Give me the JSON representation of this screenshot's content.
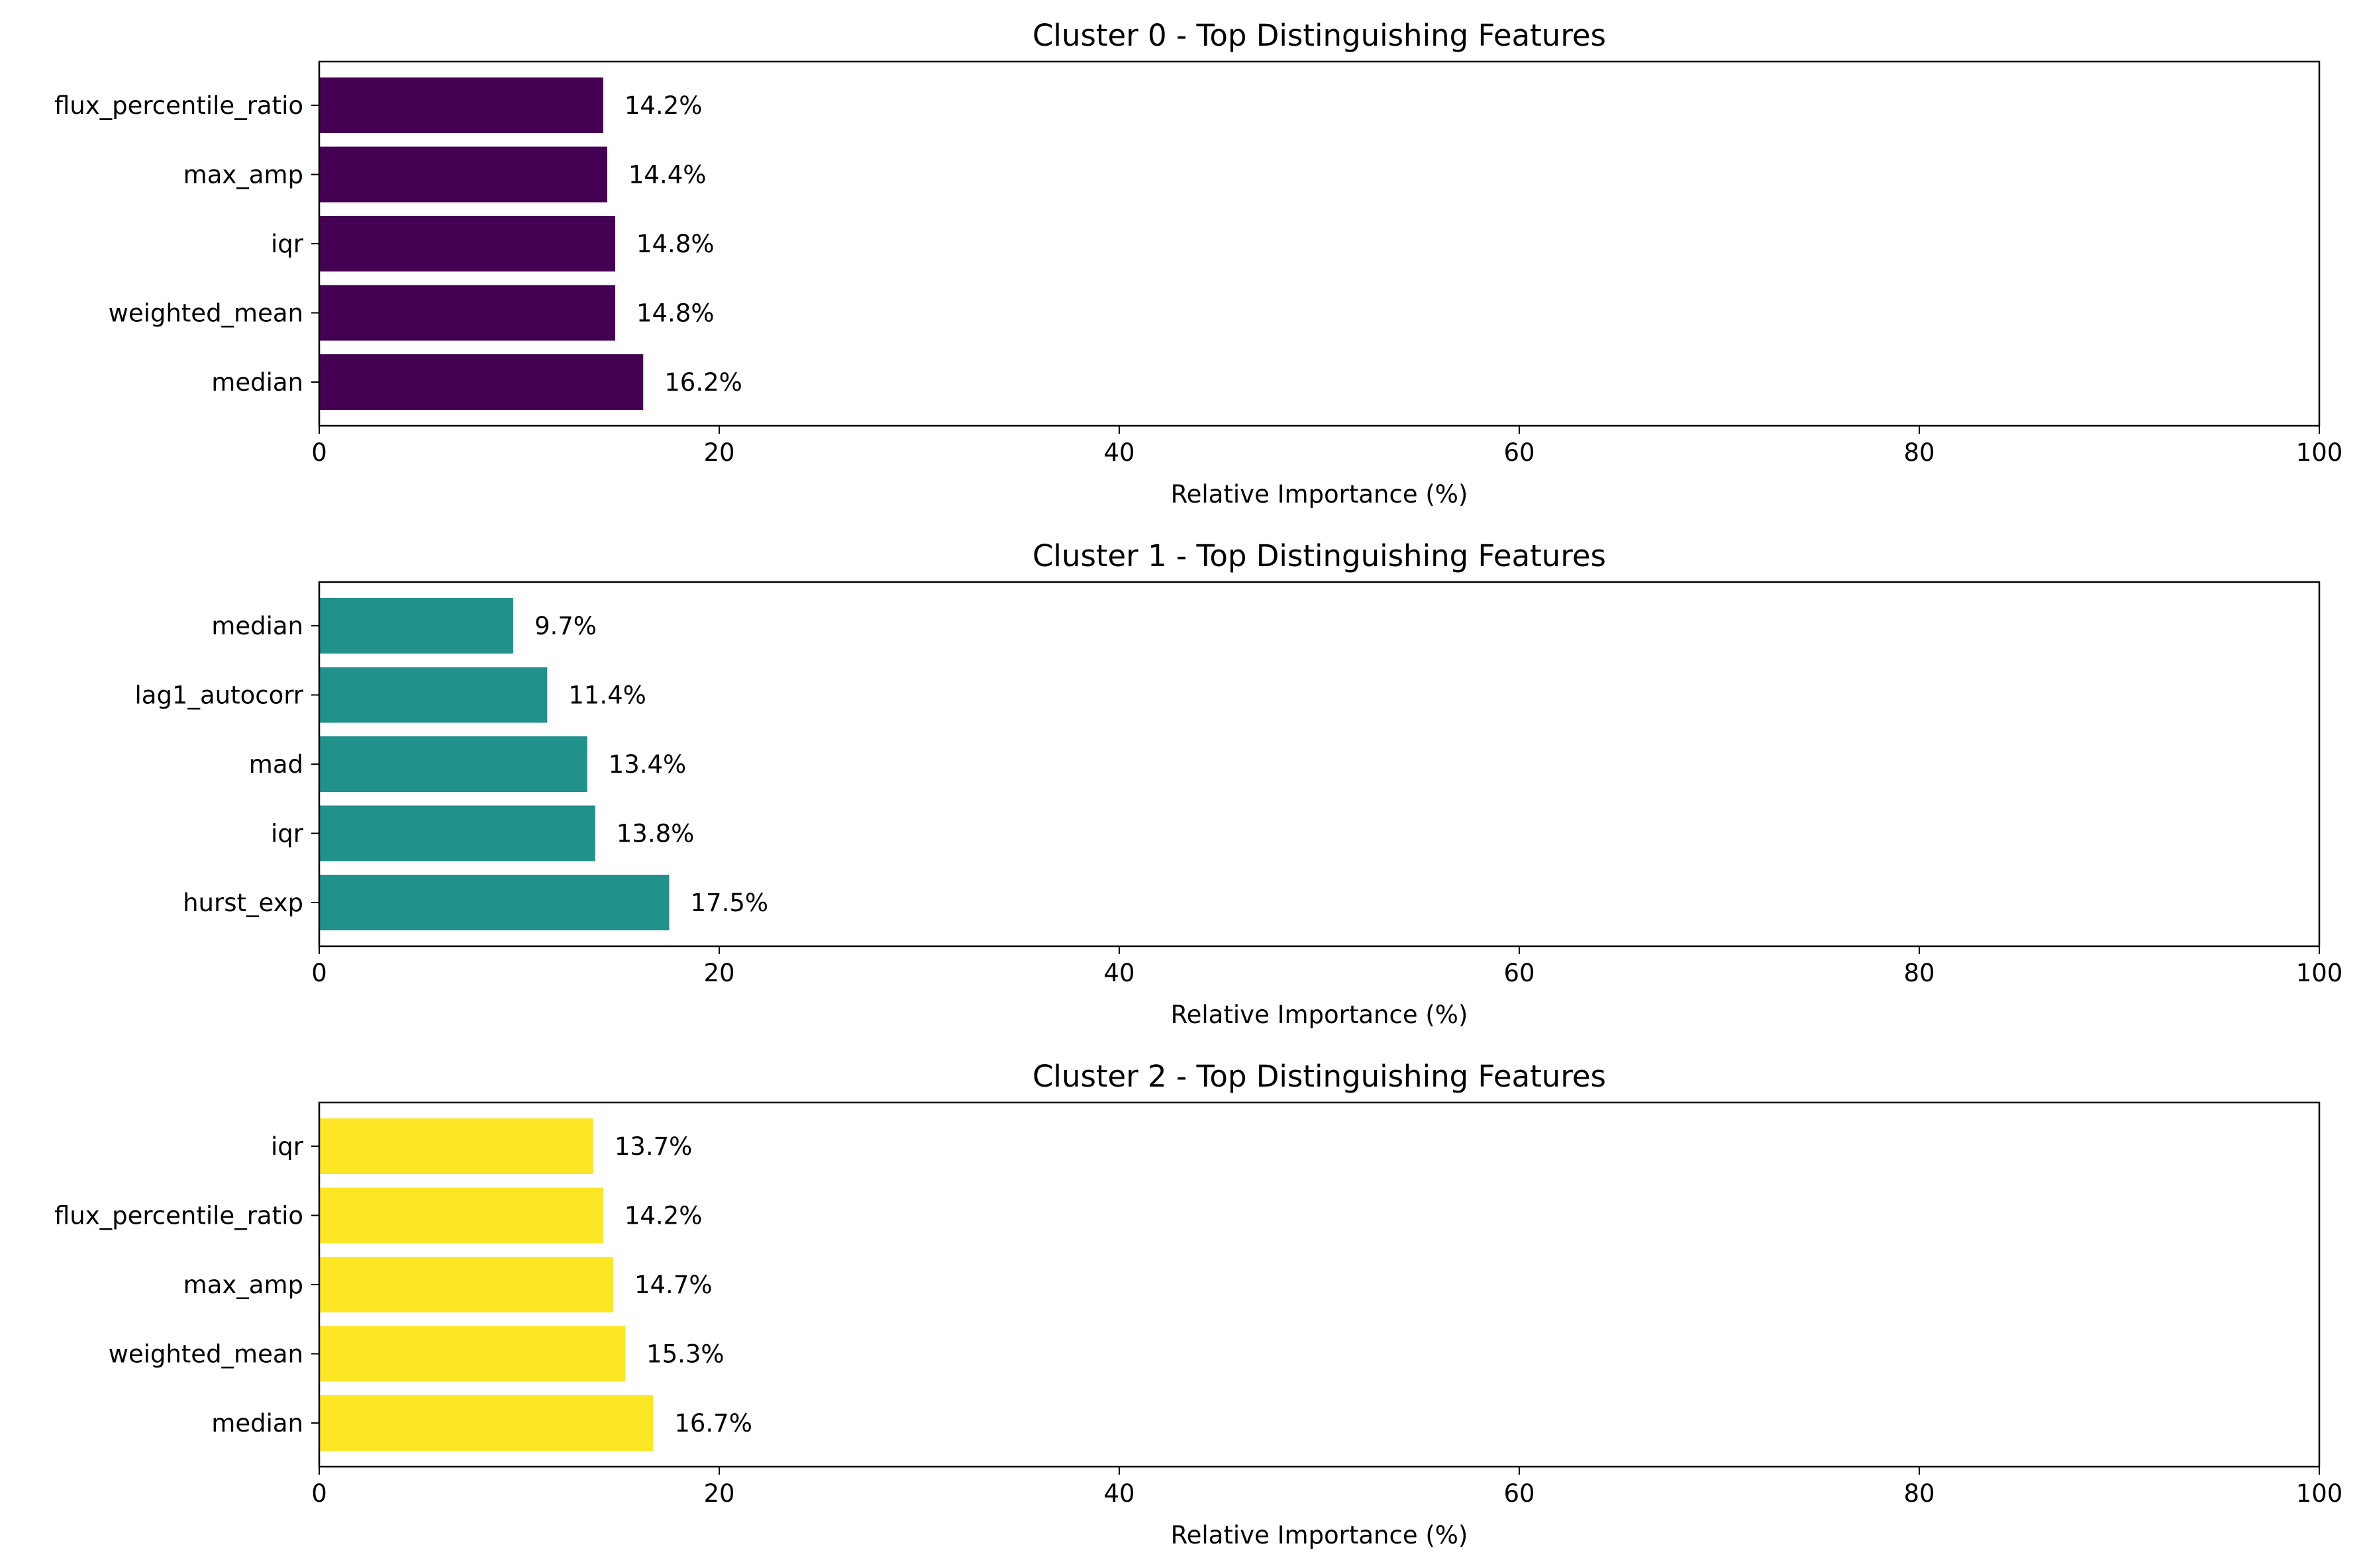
{
  "chart_data": [
    {
      "type": "bar",
      "orientation": "horizontal",
      "title": "Cluster 0 - Top Distinguishing Features",
      "xlabel": "Relative Importance (%)",
      "ylabel": "",
      "xlim": [
        0,
        100
      ],
      "xticks": [
        0,
        20,
        40,
        60,
        80,
        100
      ],
      "color": "#440154",
      "grid": false,
      "categories": [
        "median",
        "weighted_mean",
        "iqr",
        "max_amp",
        "flux_percentile_ratio"
      ],
      "values": [
        16.2,
        14.8,
        14.8,
        14.4,
        14.2
      ],
      "value_labels": [
        "16.2%",
        "14.8%",
        "14.8%",
        "14.4%",
        "14.2%"
      ]
    },
    {
      "type": "bar",
      "orientation": "horizontal",
      "title": "Cluster 1 - Top Distinguishing Features",
      "xlabel": "Relative Importance (%)",
      "ylabel": "",
      "xlim": [
        0,
        100
      ],
      "xticks": [
        0,
        20,
        40,
        60,
        80,
        100
      ],
      "color": "#21918c",
      "grid": false,
      "categories": [
        "hurst_exp",
        "iqr",
        "mad",
        "lag1_autocorr",
        "median"
      ],
      "values": [
        17.5,
        13.8,
        13.4,
        11.4,
        9.7
      ],
      "value_labels": [
        "17.5%",
        "13.8%",
        "13.4%",
        "11.4%",
        "9.7%"
      ]
    },
    {
      "type": "bar",
      "orientation": "horizontal",
      "title": "Cluster 2 - Top Distinguishing Features",
      "xlabel": "Relative Importance (%)",
      "ylabel": "",
      "xlim": [
        0,
        100
      ],
      "xticks": [
        0,
        20,
        40,
        60,
        80,
        100
      ],
      "color": "#fde725",
      "grid": false,
      "categories": [
        "median",
        "weighted_mean",
        "max_amp",
        "flux_percentile_ratio",
        "iqr"
      ],
      "values": [
        16.7,
        15.3,
        14.7,
        14.2,
        13.7
      ],
      "value_labels": [
        "16.7%",
        "15.3%",
        "14.7%",
        "14.2%",
        "13.7%"
      ]
    }
  ]
}
